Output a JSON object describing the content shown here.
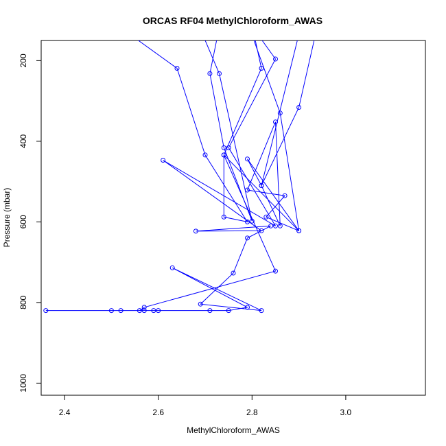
{
  "chart_data": {
    "type": "line",
    "title": "ORCAS RF04 MethylChloroform_AWAS",
    "xlabel": "MethylChloroform_AWAS",
    "ylabel": "Pressure (mbar)",
    "xlim": [
      2.35,
      3.17
    ],
    "ylim": [
      1030,
      150
    ],
    "x_ticks": [
      2.4,
      2.6,
      2.8,
      3.0
    ],
    "x_tick_labels": [
      "2.4",
      "2.6",
      "2.8",
      "3.0"
    ],
    "y_ticks": [
      200,
      400,
      600,
      800,
      1000
    ],
    "y_tick_labels": [
      "200",
      "400",
      "600",
      "800",
      "1000"
    ],
    "grid": false,
    "series": [
      {
        "color": "#0000ff",
        "points": [
          {
            "x": 2.42,
            "y": 35
          },
          {
            "x": 2.64,
            "y": 219
          },
          {
            "x": 2.7,
            "y": 434
          },
          {
            "x": 2.79,
            "y": 600
          },
          {
            "x": 2.74,
            "y": 588
          },
          {
            "x": 2.74,
            "y": 434
          },
          {
            "x": 2.85,
            "y": 722
          },
          {
            "x": 2.57,
            "y": 812
          },
          {
            "x": 2.56,
            "y": 820
          },
          {
            "x": 2.36,
            "y": 820
          },
          {
            "x": 2.5,
            "y": 820
          },
          {
            "x": 2.52,
            "y": 820
          },
          {
            "x": 2.57,
            "y": 820
          },
          {
            "x": 2.59,
            "y": 820
          },
          {
            "x": 2.6,
            "y": 820
          },
          {
            "x": 2.71,
            "y": 820
          },
          {
            "x": 2.75,
            "y": 820
          },
          {
            "x": 2.79,
            "y": 812
          },
          {
            "x": 2.63,
            "y": 714
          },
          {
            "x": 2.82,
            "y": 820
          },
          {
            "x": 2.69,
            "y": 804
          },
          {
            "x": 2.76,
            "y": 727
          },
          {
            "x": 2.79,
            "y": 640
          },
          {
            "x": 2.84,
            "y": 610
          },
          {
            "x": 2.68,
            "y": 623
          },
          {
            "x": 2.82,
            "y": 622
          },
          {
            "x": 2.61,
            "y": 447
          },
          {
            "x": 2.85,
            "y": 610
          },
          {
            "x": 2.75,
            "y": 416
          },
          {
            "x": 2.85,
            "y": 196
          },
          {
            "x": 2.8,
            "y": 115
          },
          {
            "x": 2.75,
            "y": 60
          }
        ]
      },
      {
        "color": "#0000ff",
        "points": [
          {
            "x": 2.74,
            "y": 60
          },
          {
            "x": 2.71,
            "y": 232
          },
          {
            "x": 2.74,
            "y": 416
          },
          {
            "x": 2.8,
            "y": 598
          },
          {
            "x": 2.73,
            "y": 232
          },
          {
            "x": 2.66,
            "y": 40
          }
        ]
      },
      {
        "color": "#0000ff",
        "points": [
          {
            "x": 2.79,
            "y": 60
          },
          {
            "x": 2.82,
            "y": 219
          },
          {
            "x": 2.74,
            "y": 434
          },
          {
            "x": 2.9,
            "y": 622
          },
          {
            "x": 2.79,
            "y": 444
          },
          {
            "x": 2.82,
            "y": 510
          },
          {
            "x": 2.86,
            "y": 610
          },
          {
            "x": 2.85,
            "y": 352
          },
          {
            "x": 2.79,
            "y": 521
          },
          {
            "x": 2.87,
            "y": 535
          },
          {
            "x": 2.83,
            "y": 588
          },
          {
            "x": 2.9,
            "y": 622
          },
          {
            "x": 2.86,
            "y": 330
          },
          {
            "x": 2.77,
            "y": 40
          }
        ]
      },
      {
        "color": "#0000ff",
        "points": [
          {
            "x": 2.95,
            "y": 60
          },
          {
            "x": 2.9,
            "y": 316
          },
          {
            "x": 2.82,
            "y": 510
          },
          {
            "x": 2.92,
            "y": 40
          }
        ]
      }
    ]
  }
}
